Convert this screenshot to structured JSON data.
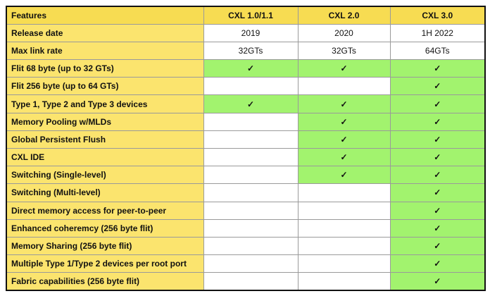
{
  "table": {
    "header": [
      "Features",
      "CXL 1.0/1.1",
      "CXL 2.0",
      "CXL 3.0"
    ],
    "rows": [
      [
        "Release date",
        "2019",
        "2020",
        "1H 2022"
      ],
      [
        "Max link rate",
        "32GTs",
        "32GTs",
        "64GTs"
      ],
      [
        "Flit 68 byte (up to 32 GTs)",
        "✓",
        "✓",
        "✓"
      ],
      [
        "Flit 256 byte (up to 64 GTs)",
        null,
        null,
        "✓"
      ],
      [
        "Type 1, Type 2 and Type 3 devices",
        "✓",
        "✓",
        "✓"
      ],
      [
        "Memory Pooling w/MLDs",
        null,
        "✓",
        "✓"
      ],
      [
        "Global Persistent Flush",
        null,
        "✓",
        "✓"
      ],
      [
        "CXL IDE",
        null,
        "✓",
        "✓"
      ],
      [
        "Switching (Single-level)",
        null,
        "✓",
        "✓"
      ],
      [
        "Switching (Multi-level)",
        null,
        null,
        "✓"
      ],
      [
        "Direct memory access for peer-to-peer",
        null,
        null,
        "✓"
      ],
      [
        "Enhanced coheremcy (256 byte flit)",
        null,
        null,
        "✓"
      ],
      [
        "Memory Sharing (256 byte flit)",
        null,
        null,
        "✓"
      ],
      [
        "Multiple Type 1/Type 2 devices per root port",
        null,
        null,
        "✓"
      ],
      [
        "Fabric capabilities (256 byte flit)",
        null,
        null,
        "✓"
      ]
    ]
  }
}
